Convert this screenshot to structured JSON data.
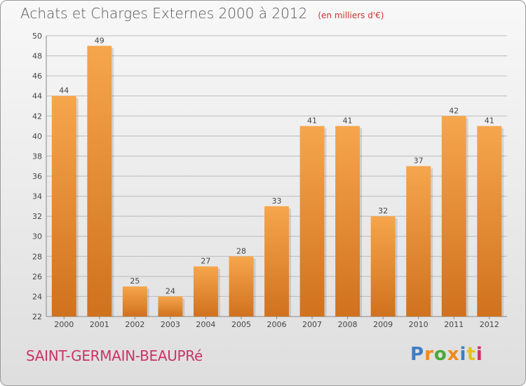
{
  "header": {
    "title": "Achats et Charges Externes 2000 à 2012",
    "subtitle": "(en milliers d'€)"
  },
  "footer": {
    "commune": "SAINT-GERMAIN-BEAUPRé",
    "logo_letters": [
      "P",
      "r",
      "o",
      "x",
      "i",
      "t",
      "i"
    ]
  },
  "colors": {
    "bar_light": "#f6a64c",
    "bar_dark": "#d0711e",
    "grid": "#bbbbbb",
    "commune": "#cc3366",
    "logo": [
      "#3d7fc4",
      "#f08a1a",
      "#4aa83a",
      "#f08a1a",
      "#3d7fc4",
      "#e6c21a",
      "#cc3366"
    ]
  },
  "chart_data": {
    "type": "bar",
    "categories": [
      "2000",
      "2001",
      "2002",
      "2003",
      "2004",
      "2005",
      "2006",
      "2007",
      "2008",
      "2009",
      "2010",
      "2011",
      "2012"
    ],
    "values": [
      44,
      49,
      25,
      24,
      27,
      28,
      33,
      41,
      41,
      32,
      37,
      42,
      41
    ],
    "ylim": [
      22,
      50
    ],
    "yticks": [
      22,
      24,
      26,
      28,
      30,
      32,
      34,
      36,
      38,
      40,
      42,
      44,
      46,
      48,
      50
    ],
    "grid": true,
    "data_labels": true
  }
}
